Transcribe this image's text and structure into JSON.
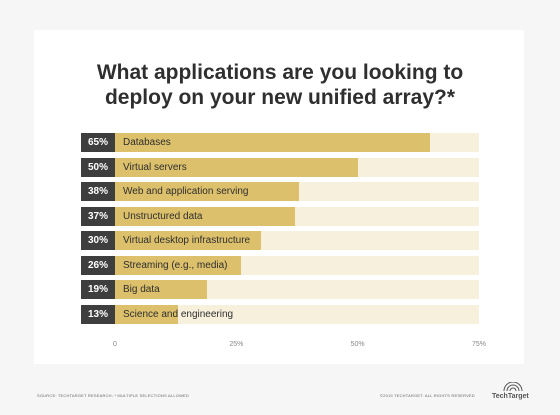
{
  "chart_data": {
    "type": "bar",
    "orientation": "horizontal",
    "title_lines": [
      "What applications are you looking to",
      "deploy on your new unified array?*"
    ],
    "categories": [
      "Databases",
      "Virtual servers",
      "Web and application serving",
      "Unstructured data",
      "Virtual desktop infrastructure",
      "Streaming (e.g., media)",
      "Big data",
      "Science and engineering"
    ],
    "values": [
      65,
      50,
      38,
      37,
      30,
      26,
      19,
      13
    ],
    "value_labels": [
      "65%",
      "50%",
      "38%",
      "37%",
      "30%",
      "26%",
      "19%",
      "13%"
    ],
    "xlim": [
      0,
      75
    ],
    "x_ticks": [
      "0",
      "25%",
      "50%",
      "75%"
    ],
    "x_tick_values": [
      0,
      25,
      50,
      75
    ],
    "grid": false,
    "legend": "none",
    "colors": {
      "fill": "#dcc06b",
      "track": "#f7f0dc",
      "label_bg": "#3e3e3e"
    }
  },
  "footer": {
    "source": "SOURCE: TECHTARGET RESEARCH; * MULTIPLE SELECTIONS ALLOWED",
    "copyright": "©2019 TECHTARGET. ALL RIGHTS RESERVED",
    "brand": "TechTarget"
  }
}
